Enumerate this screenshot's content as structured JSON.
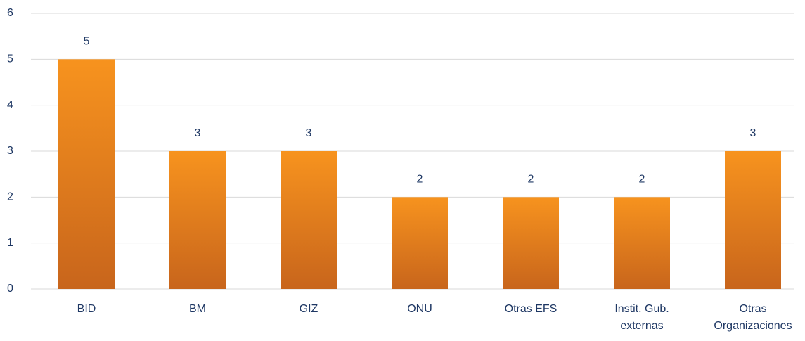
{
  "chart_data": {
    "type": "bar",
    "categories": [
      "BID",
      "BM",
      "GIZ",
      "ONU",
      "Otras EFS",
      "Instit. Gub. externas",
      "Otras Organizaciones"
    ],
    "values": [
      5,
      3,
      3,
      2,
      2,
      2,
      3
    ],
    "color": "#f7931e",
    "ylim": [
      0,
      6
    ],
    "yticks": [
      0,
      1,
      2,
      3,
      4,
      5,
      6
    ],
    "grid": true
  }
}
